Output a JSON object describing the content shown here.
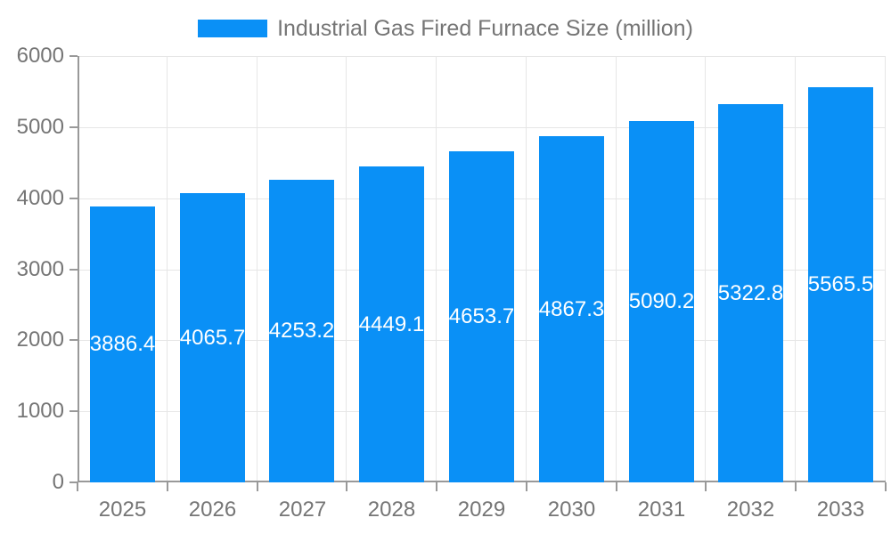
{
  "chart_data": {
    "type": "bar",
    "title": "Industrial Gas Fired Furnace Size (million)",
    "series_name": "Industrial Gas Fired Furnace Size (million)",
    "categories": [
      "2025",
      "2026",
      "2027",
      "2028",
      "2029",
      "2030",
      "2031",
      "2032",
      "2033"
    ],
    "values": [
      3886.4,
      4065.7,
      4253.2,
      4449.1,
      4653.7,
      4867.3,
      5090.2,
      5322.8,
      5565.5
    ],
    "data_labels": [
      "3886.4",
      "4065.7",
      "4253.2",
      "4449.1",
      "4653.7",
      "4867.3",
      "5090.2",
      "5322.8",
      "5565.5"
    ],
    "xlabel": "",
    "ylabel": "",
    "ylim": [
      0,
      6000
    ],
    "yticks": [
      0,
      1000,
      2000,
      3000,
      4000,
      5000,
      6000
    ],
    "grid": true,
    "legend_position": "top",
    "colors": {
      "bar": "#0a90f6",
      "bar_label": "#ffffff",
      "grid": "#e6e6e6",
      "axis": "#999999",
      "tick_text": "#757575",
      "title_text": "#757575",
      "background": "#ffffff"
    }
  }
}
